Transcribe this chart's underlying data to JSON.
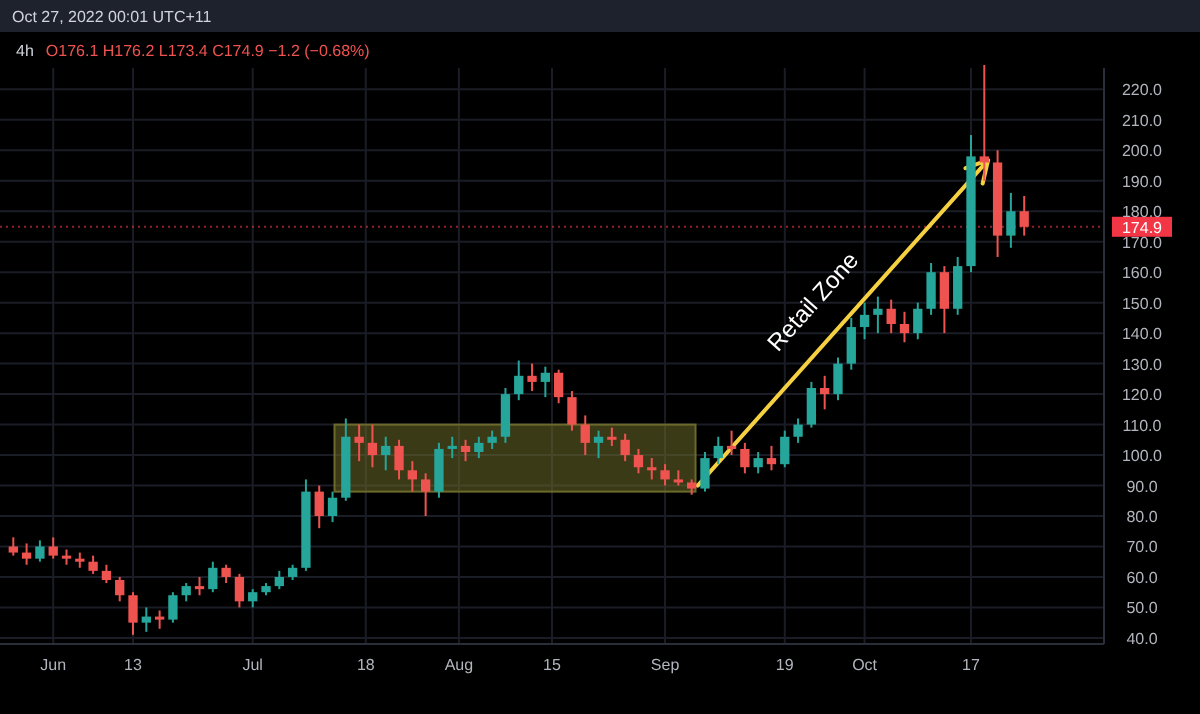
{
  "chart_data": {
    "type": "candlestick",
    "title": "4h",
    "subtitle": "O176.1 H176.2 L173.4 C174.9 −1.2 (−0.68%)",
    "annotations": [
      "Oct 27, 2022 00:01 UTC+11",
      "Retail Zone"
    ],
    "x": [
      "2022-05-26",
      "2022-05-28",
      "2022-05-30",
      "2022-06-01",
      "2022-06-03",
      "2022-06-05",
      "2022-06-07",
      "2022-06-09",
      "2022-06-11",
      "2022-06-13",
      "2022-06-15",
      "2022-06-17",
      "2022-06-19",
      "2022-06-21",
      "2022-06-23",
      "2022-06-25",
      "2022-06-27",
      "2022-06-29",
      "2022-07-01",
      "2022-07-03",
      "2022-07-05",
      "2022-07-07",
      "2022-07-09",
      "2022-07-11",
      "2022-07-13",
      "2022-07-15",
      "2022-07-17",
      "2022-07-19",
      "2022-07-21",
      "2022-07-23",
      "2022-07-25",
      "2022-07-27",
      "2022-07-29",
      "2022-07-31",
      "2022-08-02",
      "2022-08-04",
      "2022-08-06",
      "2022-08-08",
      "2022-08-10",
      "2022-08-12",
      "2022-08-14",
      "2022-08-16",
      "2022-08-18",
      "2022-08-20",
      "2022-08-22",
      "2022-08-24",
      "2022-08-26",
      "2022-08-28",
      "2022-08-30",
      "2022-09-01",
      "2022-09-03",
      "2022-09-05",
      "2022-09-07",
      "2022-09-09",
      "2022-09-11",
      "2022-09-13",
      "2022-09-15",
      "2022-09-17",
      "2022-09-19",
      "2022-09-21",
      "2022-09-23",
      "2022-09-25",
      "2022-09-27",
      "2022-09-29",
      "2022-10-01",
      "2022-10-03",
      "2022-10-05",
      "2022-10-07",
      "2022-10-09",
      "2022-10-11",
      "2022-10-13",
      "2022-10-15",
      "2022-10-17",
      "2022-10-19",
      "2022-10-21",
      "2022-10-23",
      "2022-10-25"
    ],
    "ohlc": [
      [
        70,
        73,
        67,
        68
      ],
      [
        68,
        71,
        64,
        66
      ],
      [
        66,
        72,
        65,
        70
      ],
      [
        70,
        73,
        66,
        67
      ],
      [
        67,
        69,
        64,
        66
      ],
      [
        66,
        68,
        63,
        65
      ],
      [
        65,
        67,
        61,
        62
      ],
      [
        62,
        64,
        58,
        59
      ],
      [
        59,
        60,
        52,
        54
      ],
      [
        54,
        55,
        41,
        45
      ],
      [
        45,
        50,
        42,
        47
      ],
      [
        47,
        49,
        43,
        46
      ],
      [
        46,
        55,
        45,
        54
      ],
      [
        54,
        58,
        52,
        57
      ],
      [
        57,
        60,
        54,
        56
      ],
      [
        56,
        65,
        55,
        63
      ],
      [
        63,
        64,
        58,
        60
      ],
      [
        60,
        61,
        50,
        52
      ],
      [
        52,
        56,
        50,
        55
      ],
      [
        55,
        58,
        54,
        57
      ],
      [
        57,
        62,
        56,
        60
      ],
      [
        60,
        64,
        59,
        63
      ],
      [
        63,
        92,
        62,
        88
      ],
      [
        88,
        90,
        76,
        80
      ],
      [
        80,
        88,
        78,
        86
      ],
      [
        86,
        112,
        85,
        106
      ],
      [
        106,
        110,
        98,
        104
      ],
      [
        104,
        110,
        96,
        100
      ],
      [
        100,
        106,
        95,
        103
      ],
      [
        103,
        105,
        92,
        95
      ],
      [
        95,
        98,
        88,
        92
      ],
      [
        92,
        94,
        80,
        88
      ],
      [
        88,
        104,
        86,
        102
      ],
      [
        102,
        106,
        99,
        103
      ],
      [
        103,
        105,
        98,
        101
      ],
      [
        101,
        106,
        99,
        104
      ],
      [
        104,
        108,
        102,
        106
      ],
      [
        106,
        122,
        104,
        120
      ],
      [
        120,
        131,
        118,
        126
      ],
      [
        126,
        130,
        121,
        124
      ],
      [
        124,
        129,
        119,
        127
      ],
      [
        127,
        128,
        117,
        119
      ],
      [
        119,
        121,
        108,
        110
      ],
      [
        110,
        113,
        100,
        104
      ],
      [
        104,
        108,
        99,
        106
      ],
      [
        106,
        109,
        103,
        105
      ],
      [
        105,
        107,
        98,
        100
      ],
      [
        100,
        102,
        94,
        96
      ],
      [
        96,
        99,
        92,
        95
      ],
      [
        95,
        97,
        90,
        92
      ],
      [
        92,
        95,
        90,
        91
      ],
      [
        91,
        92,
        87,
        89
      ],
      [
        89,
        101,
        88,
        99
      ],
      [
        99,
        106,
        97,
        103
      ],
      [
        103,
        108,
        100,
        102
      ],
      [
        102,
        104,
        94,
        96
      ],
      [
        96,
        101,
        94,
        99
      ],
      [
        99,
        103,
        95,
        97
      ],
      [
        97,
        108,
        96,
        106
      ],
      [
        106,
        112,
        104,
        110
      ],
      [
        110,
        124,
        109,
        122
      ],
      [
        122,
        126,
        115,
        120
      ],
      [
        120,
        132,
        118,
        130
      ],
      [
        130,
        145,
        128,
        142
      ],
      [
        142,
        150,
        138,
        146
      ],
      [
        146,
        152,
        140,
        148
      ],
      [
        148,
        151,
        140,
        143
      ],
      [
        143,
        147,
        137,
        140
      ],
      [
        140,
        150,
        138,
        148
      ],
      [
        148,
        163,
        146,
        160
      ],
      [
        160,
        162,
        140,
        148
      ],
      [
        148,
        165,
        146,
        162
      ],
      [
        162,
        205,
        160,
        198
      ],
      [
        198,
        228,
        190,
        196
      ],
      [
        196,
        200,
        165,
        172
      ],
      [
        172,
        186,
        168,
        180
      ],
      [
        180,
        185,
        172,
        174.9
      ]
    ],
    "bands": [
      {
        "axis": "y",
        "from": 88,
        "to": 110,
        "color": "#6b6a2a"
      }
    ],
    "ref_lines": [
      {
        "axis": "y",
        "value": 174.9,
        "label": "174.9",
        "color": "#f23645"
      }
    ],
    "xlim": [
      "2022-05-24",
      "2022-11-06"
    ],
    "xticks": [
      {
        "value": "2022-06-01",
        "label": "Jun"
      },
      {
        "value": "2022-06-13",
        "label": "13"
      },
      {
        "value": "2022-07-01",
        "label": "Jul"
      },
      {
        "value": "2022-07-18",
        "label": "18"
      },
      {
        "value": "2022-08-01",
        "label": "Aug"
      },
      {
        "value": "2022-08-15",
        "label": "15"
      },
      {
        "value": "2022-09-01",
        "label": "Sep"
      },
      {
        "value": "2022-09-19",
        "label": "19"
      },
      {
        "value": "2022-10-01",
        "label": "Oct"
      },
      {
        "value": "2022-10-17",
        "label": "17"
      }
    ],
    "ylim": [
      38,
      227
    ],
    "yticks": [
      {
        "value": 40,
        "label": "40.0"
      },
      {
        "value": 50,
        "label": "50.0"
      },
      {
        "value": 60,
        "label": "60.0"
      },
      {
        "value": 70,
        "label": "70.0"
      },
      {
        "value": 80,
        "label": "80.0"
      },
      {
        "value": 90,
        "label": "90.0"
      },
      {
        "value": 100,
        "label": "100.0"
      },
      {
        "value": 110,
        "label": "110.0"
      },
      {
        "value": 120,
        "label": "120.0"
      },
      {
        "value": 130,
        "label": "130.0"
      },
      {
        "value": 140,
        "label": "140.0"
      },
      {
        "value": 150,
        "label": "150.0"
      },
      {
        "value": 160,
        "label": "160.0"
      },
      {
        "value": 170,
        "label": "170.0"
      },
      {
        "value": 180,
        "label": "180.0"
      },
      {
        "value": 190,
        "label": "190.0"
      },
      {
        "value": 200,
        "label": "200.0"
      },
      {
        "value": 210,
        "label": "210.0"
      },
      {
        "value": 220,
        "label": "220.0"
      }
    ],
    "grid": true
  }
}
